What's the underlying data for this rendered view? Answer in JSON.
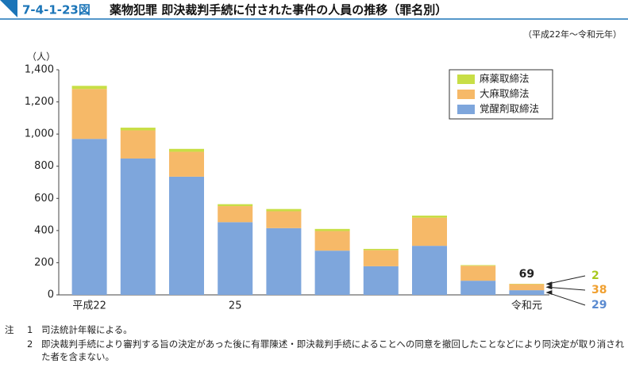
{
  "chart_data": {
    "type": "stacked-bar",
    "figure_number": "7-4-1-23図",
    "title": "薬物犯罪 即決裁判手続に付された事件の人員の推移（罪名別）",
    "subtitle": "（平成22年～令和元年）",
    "y_label": "（人）",
    "categories": [
      "平成22",
      null,
      null,
      "25",
      null,
      null,
      null,
      null,
      null,
      "令和元"
    ],
    "series": [
      {
        "name": "覚醒剤取締法",
        "color": "#7ea6dc",
        "label_color": "#5a8ad0",
        "values": [
          970,
          848,
          735,
          452,
          415,
          275,
          178,
          305,
          88,
          29
        ]
      },
      {
        "name": "大麻取締法",
        "color": "#f6b968",
        "label_color": "#f0a030",
        "values": [
          310,
          175,
          155,
          100,
          105,
          122,
          100,
          175,
          93,
          38
        ]
      },
      {
        "name": "麻薬取締法",
        "color": "#c8de46",
        "label_color": "#a8c81e",
        "values": [
          20,
          17,
          18,
          12,
          14,
          13,
          8,
          13,
          4,
          2
        ]
      }
    ],
    "total_label": 69,
    "ylim": [
      0,
      1400
    ],
    "yticks": [
      0,
      200,
      400,
      600,
      800,
      {
        "value": 1000,
        "label": "1,000"
      },
      {
        "value": 1200,
        "label": "1,200"
      },
      {
        "value": 1400,
        "label": "1,400"
      }
    ],
    "legend": "top-right"
  },
  "notes": {
    "label": "注",
    "items": [
      {
        "number": "1",
        "text": "司法統計年報による。"
      },
      {
        "number": "2",
        "text": "即決裁判手続により審判する旨の決定があった後に有罪陳述・即決裁判手続によることへの同意を撤回したことなどにより同決定が取り消された者を含まない。"
      }
    ]
  }
}
